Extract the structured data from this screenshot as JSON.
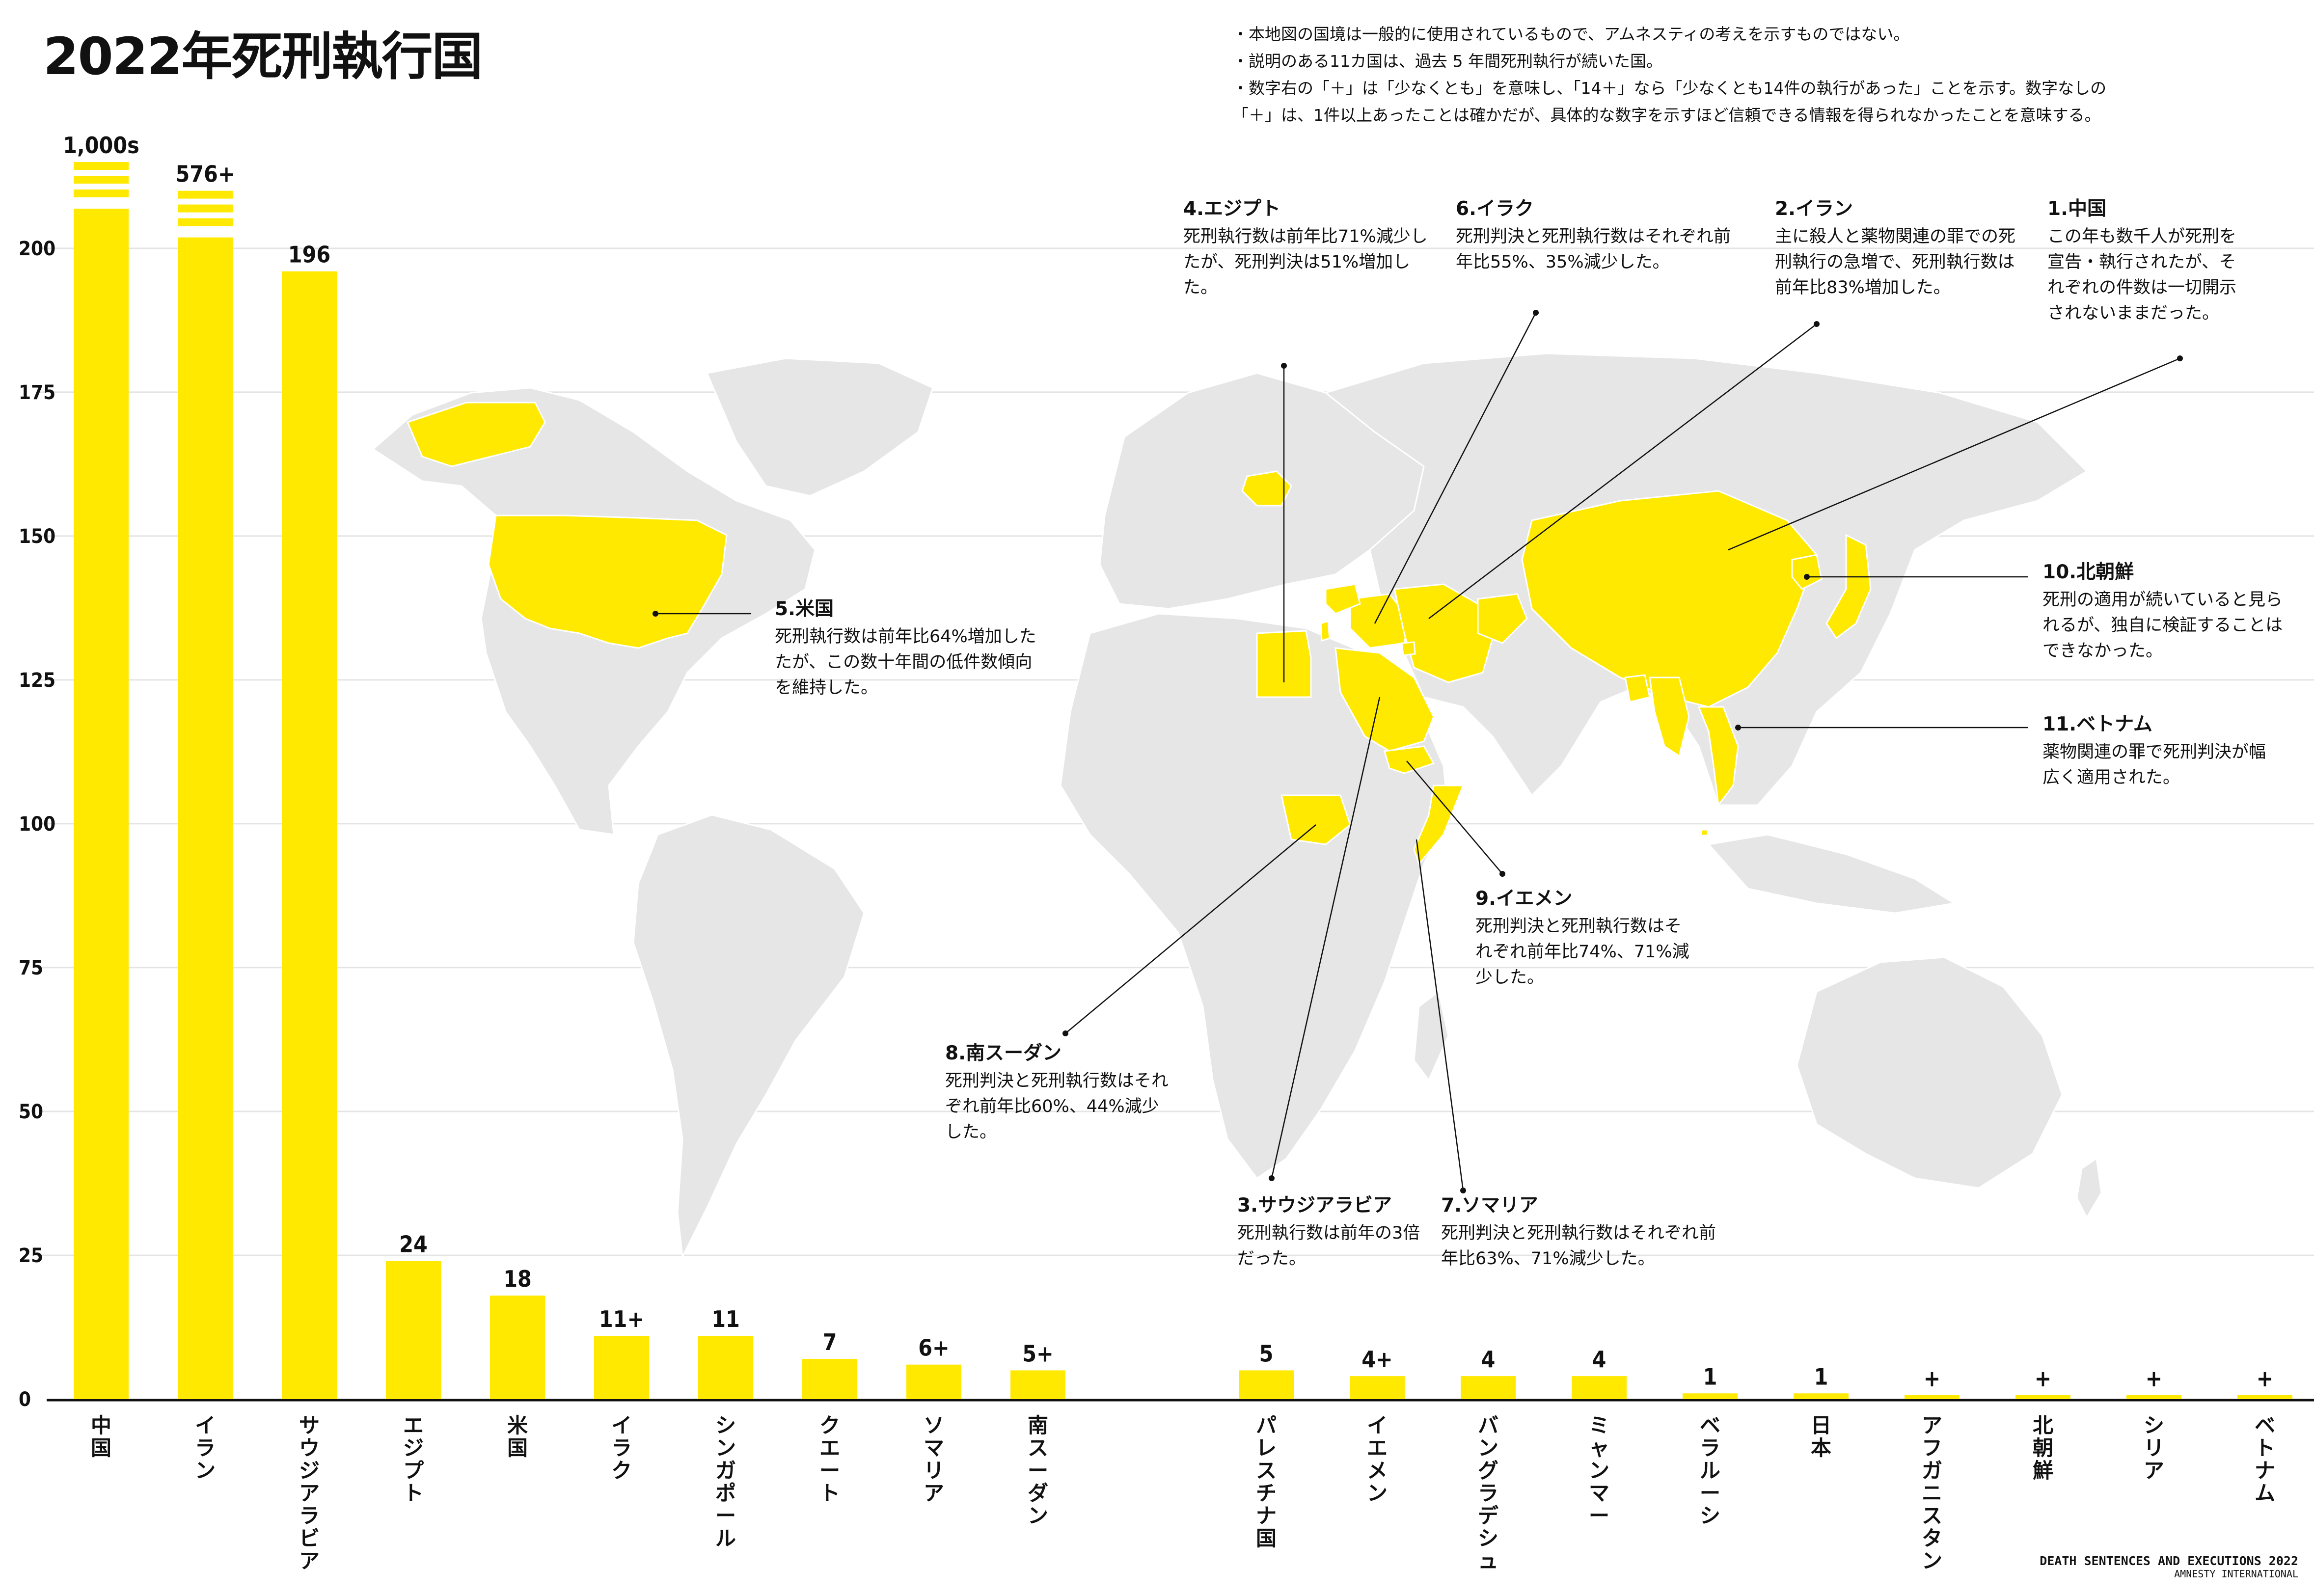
{
  "title": "2022年死刑執行国",
  "notes": [
    "・本地図の国境は一般的に使用されているもので、アムネスティの考えを示すものではない。",
    "・説明のある11カ国は、過去 5 年間死刑執行が続いた国。",
    "・数字右の「＋」は「少なくとも」を意味し、「14＋」なら「少なくとも14件の執行があった」ことを示す。数字なしの",
    "「＋」は、1件以上あったことは確かだが、具体的な数字を示すほど信頼できる情報を得られなかったことを意味する。"
  ],
  "colors": {
    "highlight": "#FFE900",
    "map_land": "#e6e6e6",
    "text": "#111111"
  },
  "chart_data": {
    "type": "bar",
    "ylim": [
      0,
      215
    ],
    "yticks": [
      0,
      25,
      50,
      75,
      100,
      125,
      150,
      175,
      200
    ],
    "grid": true,
    "bars": [
      {
        "name": "中国",
        "value": 215,
        "label": "1,000s",
        "broken": true
      },
      {
        "name": "イラン",
        "value": 210,
        "label": "576+",
        "broken": true
      },
      {
        "name": "サウジアラビア",
        "value": 196,
        "label": "196"
      },
      {
        "name": "エジプト",
        "value": 24,
        "label": "24"
      },
      {
        "name": "米国",
        "value": 18,
        "label": "18"
      },
      {
        "name": "イラク",
        "value": 11,
        "label": "11+"
      },
      {
        "name": "シンガポール",
        "value": 11,
        "label": "11"
      },
      {
        "name": "クエート",
        "value": 7,
        "label": "7"
      },
      {
        "name": "ソマリア",
        "value": 6,
        "label": "6+"
      },
      {
        "name": "南スーダン",
        "value": 5,
        "label": "5+"
      },
      {
        "name": "パレスチナ国",
        "value": 5,
        "label": "5"
      },
      {
        "name": "イエメン",
        "value": 4,
        "label": "4+"
      },
      {
        "name": "バングラデシュ",
        "value": 4,
        "label": "4"
      },
      {
        "name": "ミャンマー",
        "value": 4,
        "label": "4"
      },
      {
        "name": "ベラルーシ",
        "value": 1,
        "label": "1"
      },
      {
        "name": "日本",
        "value": 1,
        "label": "1"
      },
      {
        "name": "アフガニスタン",
        "value": 0,
        "label": "+"
      },
      {
        "name": "北朝鮮",
        "value": 0,
        "label": "+"
      },
      {
        "name": "シリア",
        "value": 0,
        "label": "+"
      },
      {
        "name": "ベトナム",
        "value": 0,
        "label": "+"
      }
    ]
  },
  "callouts": [
    {
      "id": "china",
      "title": "1.中国",
      "text": "この年も数千人が死刑を宣告・執行されたが、それぞれの件数は一切開示されないままだった。"
    },
    {
      "id": "iran",
      "title": "2.イラン",
      "text": "主に殺人と薬物関連の罪での死刑執行の急増で、死刑執行数は前年比83%増加した。"
    },
    {
      "id": "saudi",
      "title": "3.サウジアラビア",
      "text": "死刑執行数は前年の3倍だった。"
    },
    {
      "id": "egypt",
      "title": "4.エジプト",
      "text": "死刑執行数は前年比71%減少したが、死刑判決は51%増加した。"
    },
    {
      "id": "usa",
      "title": "5.米国",
      "text": "死刑執行数は前年比64%増加したたが、この数十年間の低件数傾向を維持した。"
    },
    {
      "id": "iraq",
      "title": "6.イラク",
      "text": "死刑判決と死刑執行数はそれぞれ前年比55%、35%減少した。"
    },
    {
      "id": "somalia",
      "title": "7.ソマリア",
      "text": "死刑判決と死刑執行数はそれぞれ前年比63%、71%減少した。"
    },
    {
      "id": "ssudan",
      "title": "8.南スーダン",
      "text": "死刑判決と死刑執行数はそれぞれ前年比60%、44%減少した。"
    },
    {
      "id": "yemen",
      "title": "9.イエメン",
      "text": "死刑判決と死刑執行数はそれぞれ前年比74%、71%減少した。"
    },
    {
      "id": "nkorea",
      "title": "10.北朝鮮",
      "text": "死刑の適用が続いていると見られるが、独自に検証することはできなかった。"
    },
    {
      "id": "vietnam",
      "title": "11.ベトナム",
      "text": "薬物関連の罪で死刑判決が幅広く適用された。"
    }
  ],
  "footer": {
    "line1": "DEATH SENTENCES AND EXECUTIONS 2022",
    "line2": "AMNESTY INTERNATIONAL"
  }
}
